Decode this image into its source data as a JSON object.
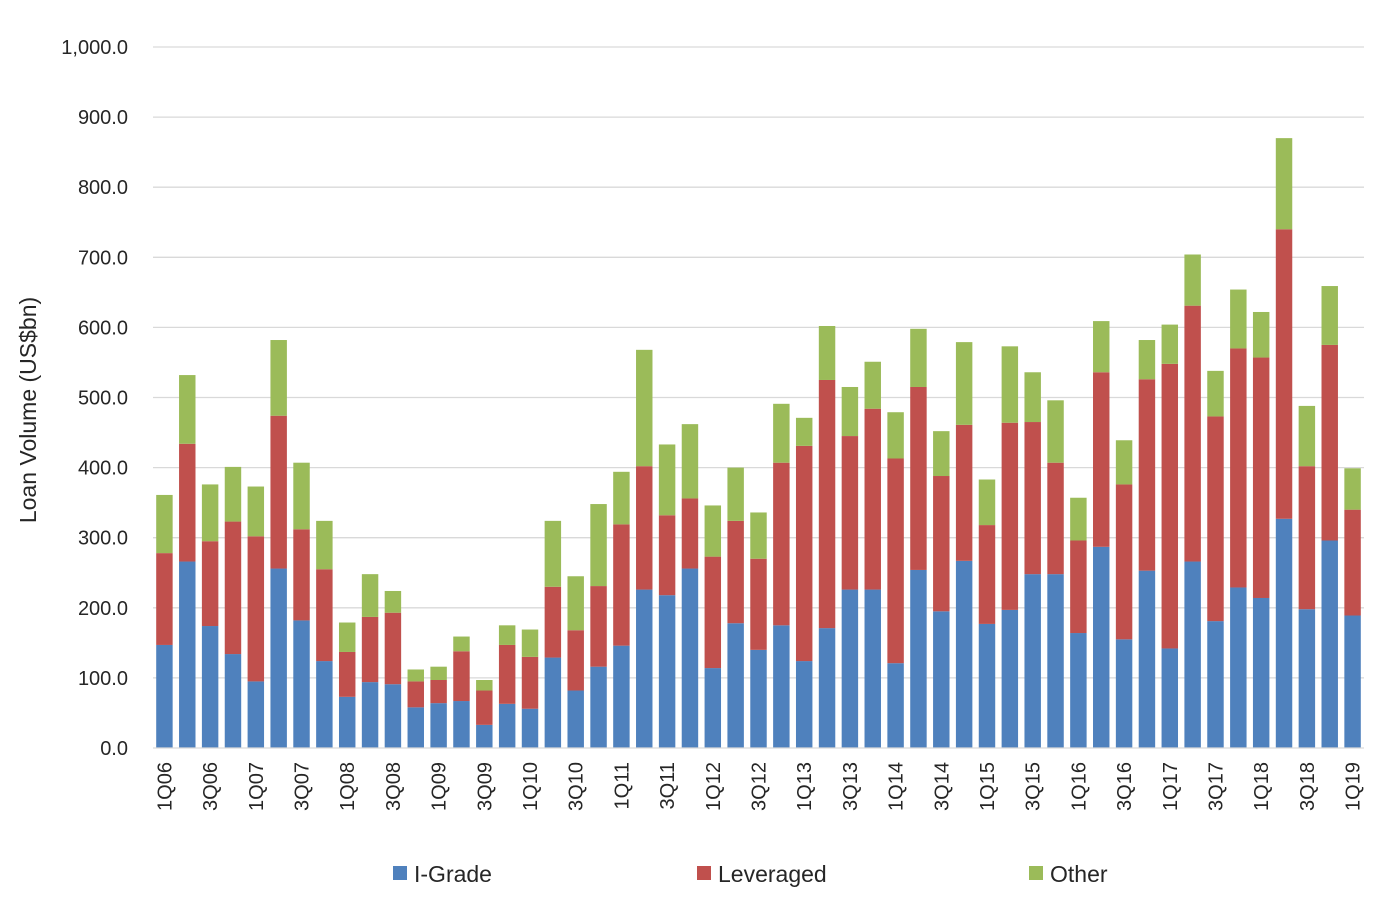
{
  "chart_data": {
    "type": "bar",
    "stacked": true,
    "title": "",
    "xlabel": "",
    "ylabel": "Loan Volume (US$bn)",
    "ylim": [
      0,
      1000
    ],
    "y_ticks": [
      "0.0",
      "100.0",
      "200.0",
      "300.0",
      "400.0",
      "500.0",
      "600.0",
      "700.0",
      "800.0",
      "900.0",
      "1,000.0"
    ],
    "grid": "horizontal",
    "legend_position": "bottom",
    "categories": [
      "1Q06",
      "2Q06",
      "3Q06",
      "4Q06",
      "1Q07",
      "2Q07",
      "3Q07",
      "4Q07",
      "1Q08",
      "2Q08",
      "3Q08",
      "4Q08",
      "1Q09",
      "2Q09",
      "3Q09",
      "4Q09",
      "1Q10",
      "2Q10",
      "3Q10",
      "4Q10",
      "1Q11",
      "2Q11",
      "3Q11",
      "4Q11",
      "1Q12",
      "2Q12",
      "3Q12",
      "4Q12",
      "1Q13",
      "2Q13",
      "3Q13",
      "4Q13",
      "1Q14",
      "2Q14",
      "3Q14",
      "4Q14",
      "1Q15",
      "2Q15",
      "3Q15",
      "4Q15",
      "1Q16",
      "2Q16",
      "3Q16",
      "4Q16",
      "1Q17",
      "2Q17",
      "3Q17",
      "4Q17",
      "1Q18",
      "2Q18",
      "3Q18",
      "4Q18",
      "1Q19"
    ],
    "x_tick_labels_shown": [
      "1Q06",
      "3Q06",
      "1Q07",
      "3Q07",
      "1Q08",
      "3Q08",
      "1Q09",
      "3Q09",
      "1Q10",
      "3Q10",
      "1Q11",
      "3Q11",
      "1Q12",
      "3Q12",
      "1Q13",
      "3Q13",
      "1Q14",
      "3Q14",
      "1Q15",
      "3Q15",
      "1Q16",
      "3Q16",
      "1Q17",
      "3Q17",
      "1Q18",
      "3Q18",
      "1Q19"
    ],
    "series": [
      {
        "name": "I-Grade",
        "color": "#4f81bd",
        "values": [
          147,
          266,
          174,
          134,
          95,
          256,
          182,
          124,
          73,
          94,
          91,
          58,
          64,
          67,
          33,
          63,
          56,
          129,
          82,
          116,
          146,
          226,
          218,
          256,
          114,
          178,
          140,
          175,
          124,
          171,
          226,
          226,
          121,
          254,
          195,
          267,
          177,
          197,
          248,
          248,
          164,
          287,
          155,
          253,
          142,
          266,
          181,
          229,
          214,
          327,
          198,
          296,
          189
        ]
      },
      {
        "name": "Leveraged",
        "color": "#c0504d",
        "values": [
          131,
          168,
          121,
          189,
          207,
          218,
          130,
          131,
          64,
          93,
          102,
          37,
          33,
          71,
          49,
          84,
          74,
          101,
          86,
          115,
          173,
          176,
          114,
          100,
          159,
          146,
          130,
          232,
          307,
          354,
          219,
          258,
          292,
          261,
          193,
          194,
          141,
          267,
          217,
          159,
          132,
          249,
          221,
          273,
          406,
          365,
          292,
          341,
          343,
          413,
          204,
          279,
          151
        ]
      },
      {
        "name": "Other",
        "color": "#9bbb59",
        "values": [
          83,
          98,
          81,
          78,
          71,
          108,
          95,
          69,
          42,
          61,
          31,
          17,
          19,
          21,
          15,
          28,
          39,
          94,
          77,
          117,
          75,
          166,
          101,
          106,
          73,
          76,
          66,
          84,
          40,
          77,
          70,
          67,
          66,
          83,
          64,
          118,
          65,
          109,
          71,
          89,
          61,
          73,
          63,
          56,
          56,
          73,
          65,
          84,
          65,
          130,
          86,
          84,
          59
        ]
      }
    ]
  }
}
